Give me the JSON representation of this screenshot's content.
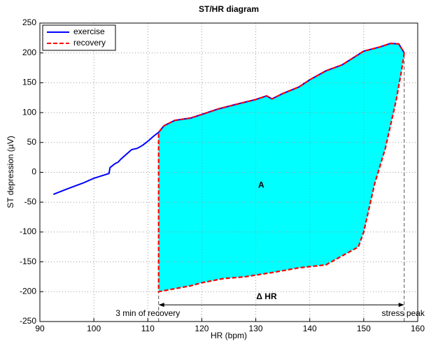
{
  "chart_data": {
    "type": "line",
    "title": "ST/HR diagram",
    "x_label": "HR (bpm)",
    "y_label": "ST depression (µV)",
    "xlim": [
      90,
      160
    ],
    "xticks": [
      90,
      100,
      110,
      120,
      130,
      140,
      150,
      160
    ],
    "ylim": [
      -250,
      250
    ],
    "yticks": [
      -250,
      -200,
      -150,
      -100,
      -50,
      0,
      50,
      100,
      150,
      200,
      250
    ],
    "grid": true,
    "legend": "upper-left",
    "fill_color": "#00ffff",
    "series": [
      {
        "name": "exercise",
        "color": "#0000ff",
        "style": "solid",
        "x": [
          92.5,
          95,
          98,
          100,
          102.8,
          103,
          104,
          104.5,
          105,
          106,
          107,
          108,
          109,
          110,
          111,
          112,
          113,
          115,
          118,
          120,
          123,
          126,
          130,
          132,
          133,
          135,
          138,
          140,
          143,
          146,
          150,
          153,
          155,
          156.5,
          157.5
        ],
        "values": [
          -37,
          -28,
          -18,
          -10,
          -2,
          8,
          15,
          17,
          22,
          30,
          38,
          40,
          45,
          52,
          60,
          67,
          78,
          87,
          91,
          97,
          106,
          113,
          122,
          128,
          123,
          132,
          143,
          155,
          170,
          180,
          203,
          210,
          216,
          215,
          200
        ]
      },
      {
        "name": "recovery",
        "color": "#ff0000",
        "style": "dashed",
        "x": [
          157.5,
          157,
          156,
          155,
          154,
          153,
          152,
          151,
          150,
          149,
          146,
          143,
          138,
          133,
          128,
          124,
          120,
          118,
          115,
          112,
          112,
          112,
          112,
          113,
          115,
          118,
          120,
          123,
          126,
          130,
          132,
          133,
          135,
          138,
          140,
          143,
          146,
          150,
          153,
          155,
          156.5,
          157.5
        ],
        "values": [
          200,
          170,
          120,
          80,
          40,
          10,
          -20,
          -60,
          -100,
          -125,
          -140,
          -155,
          -160,
          -168,
          -175,
          -178,
          -185,
          -190,
          -195,
          -200,
          -100,
          0,
          67,
          78,
          87,
          91,
          97,
          106,
          113,
          122,
          128,
          123,
          132,
          143,
          155,
          170,
          180,
          203,
          210,
          216,
          215,
          200
        ]
      }
    ],
    "annotations": [
      "A",
      "Δ HR",
      "3 min of recovery",
      "stress peak"
    ]
  }
}
